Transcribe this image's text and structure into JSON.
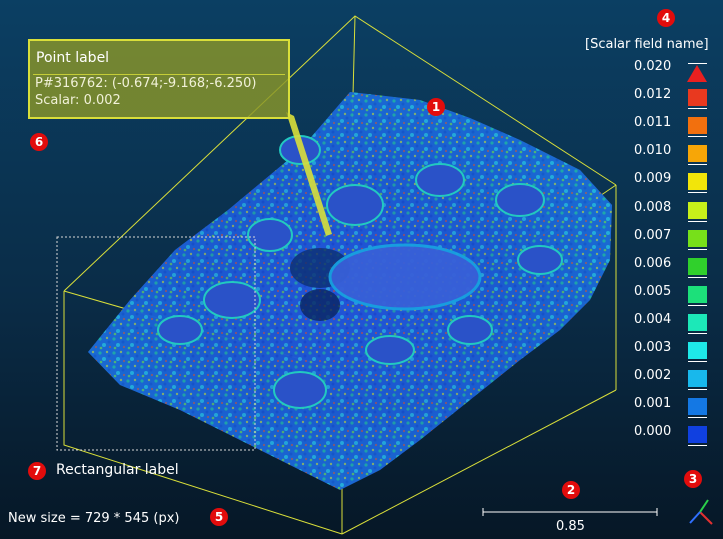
{
  "point_label": {
    "title": "Point label",
    "coords": "P#316762: (-0.674;-9.168;-6.250)",
    "scalar": "Scalar: 0.002"
  },
  "rectangular_label": "Rectangular label",
  "size_info": "New size = 729 * 545 (px)",
  "scale_bar_value": "0.85",
  "color_scale": {
    "title": "[Scalar field name]",
    "entries": [
      {
        "value": "0.020",
        "color": ""
      },
      {
        "value": "0.012",
        "color": "#e8391f"
      },
      {
        "value": "0.011",
        "color": "#f2700e"
      },
      {
        "value": "0.010",
        "color": "#f7a607"
      },
      {
        "value": "0.009",
        "color": "#f2e50a"
      },
      {
        "value": "0.008",
        "color": "#c7f01a"
      },
      {
        "value": "0.007",
        "color": "#77e01a"
      },
      {
        "value": "0.006",
        "color": "#30d02c"
      },
      {
        "value": "0.005",
        "color": "#1ce07a"
      },
      {
        "value": "0.004",
        "color": "#1ce8b8"
      },
      {
        "value": "0.003",
        "color": "#1ee8e8"
      },
      {
        "value": "0.002",
        "color": "#18b8ec"
      },
      {
        "value": "0.001",
        "color": "#1478e4"
      },
      {
        "value": "0.000",
        "color": "#1040e0"
      }
    ]
  },
  "badges": [
    "1",
    "2",
    "3",
    "4",
    "5",
    "6",
    "7"
  ],
  "colors": {
    "bounding_box": "#d9df3a",
    "badge": "#e20c0c",
    "axis_x": "#e23030",
    "axis_y": "#2ad04a",
    "axis_z": "#3070ff"
  },
  "icons": [
    "overflow-triangle-icon",
    "axis-trihedron-icon"
  ]
}
